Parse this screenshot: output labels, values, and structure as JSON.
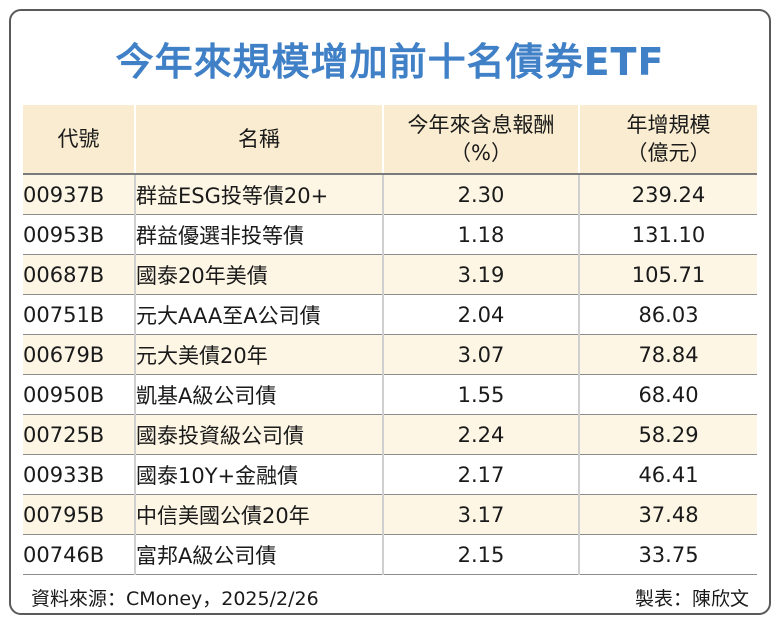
{
  "title": "今年來規模增加前十名債券ETF",
  "headers": {
    "code": "代號",
    "name": "名稱",
    "return_line1": "今年來含息報酬",
    "return_line2": "（%）",
    "scale_line1": "年增規模",
    "scale_line2": "（億元）"
  },
  "chart_data": {
    "type": "table",
    "title": "今年來規模增加前十名債券ETF",
    "columns": [
      "代號",
      "名稱",
      "今年來含息報酬（%）",
      "年增規模（億元）"
    ],
    "rows": [
      {
        "code": "00937B",
        "name": "群益ESG投等債20+",
        "return": "2.30",
        "scale": "239.24"
      },
      {
        "code": "00953B",
        "name": "群益優選非投等債",
        "return": "1.18",
        "scale": "131.10"
      },
      {
        "code": "00687B",
        "name": "國泰20年美債",
        "return": "3.19",
        "scale": "105.71"
      },
      {
        "code": "00751B",
        "name": "元大AAA至A公司債",
        "return": "2.04",
        "scale": "86.03"
      },
      {
        "code": "00679B",
        "name": "元大美債20年",
        "return": "3.07",
        "scale": "78.84"
      },
      {
        "code": "00950B",
        "name": "凱基A級公司債",
        "return": "1.55",
        "scale": "68.40"
      },
      {
        "code": "00725B",
        "name": "國泰投資級公司債",
        "return": "2.24",
        "scale": "58.29"
      },
      {
        "code": "00933B",
        "name": "國泰10Y+金融債",
        "return": "2.17",
        "scale": "46.41"
      },
      {
        "code": "00795B",
        "name": "中信美國公債20年",
        "return": "3.17",
        "scale": "37.48"
      },
      {
        "code": "00746B",
        "name": "富邦A級公司債",
        "return": "2.15",
        "scale": "33.75"
      }
    ]
  },
  "footer": {
    "source": "資料來源：CMoney，2025/2/26",
    "maker": "製表：陳欣文"
  },
  "colors": {
    "title": "#3f80c7",
    "header_bg": "#f9ecd0",
    "stripe_bg": "#fdf6e5"
  }
}
